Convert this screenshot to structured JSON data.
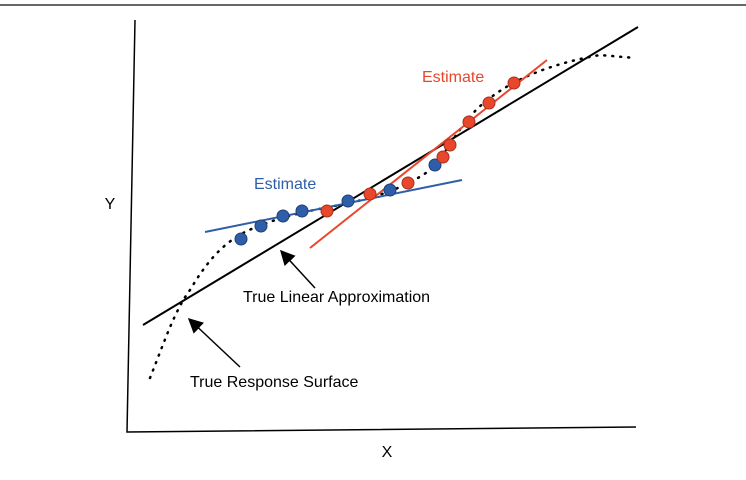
{
  "labels": {
    "y_axis": "Y",
    "x_axis": "X",
    "blue_estimate": "Estimate",
    "red_estimate": "Estimate",
    "linear": "True Linear Approximation",
    "surface": "True Response Surface"
  }
}
